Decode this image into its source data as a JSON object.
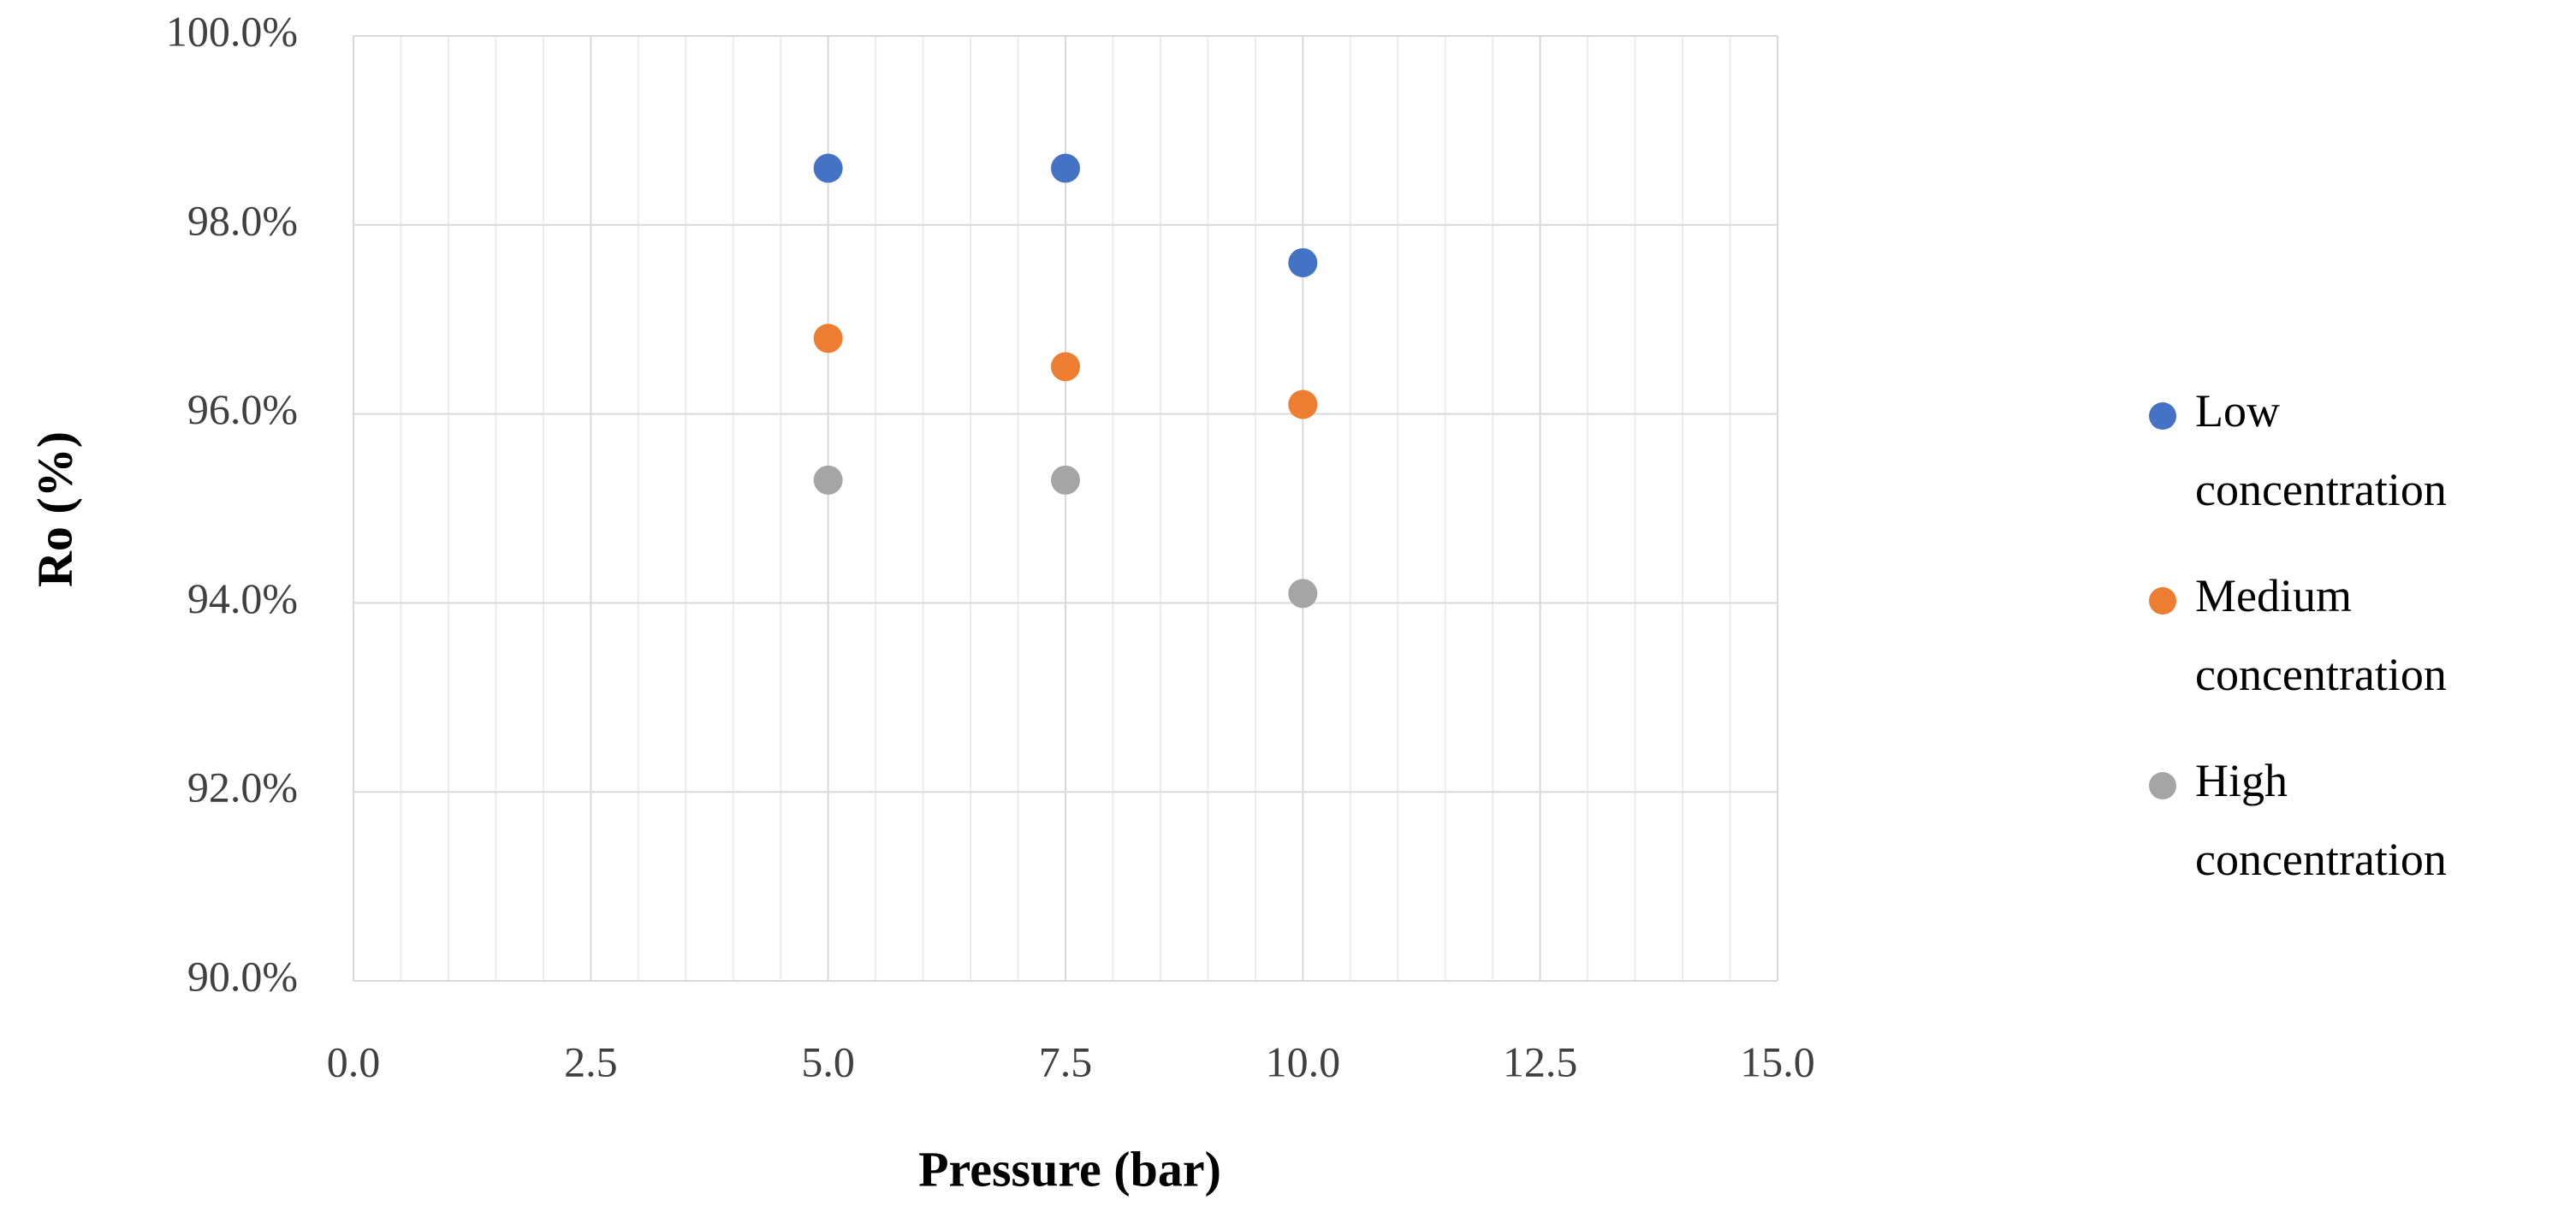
{
  "chart_data": {
    "type": "scatter",
    "x_axis_label": "Pressure (bar)",
    "y_axis_label": "Ro (%)",
    "series": [
      {
        "name": "Low concentration",
        "color": "#4472c4",
        "x": [
          5,
          7.5,
          10
        ],
        "values": [
          98.6,
          98.6,
          97.6
        ]
      },
      {
        "name": "Medium concentration",
        "color": "#ed7d31",
        "x": [
          5,
          7.5,
          10
        ],
        "values": [
          96.8,
          96.5,
          96.1
        ]
      },
      {
        "name": "High concentration",
        "color": "#a5a5a5",
        "x": [
          5,
          7.5,
          10
        ],
        "values": [
          95.3,
          95.3,
          94.1
        ]
      }
    ],
    "xlim": [
      0,
      15
    ],
    "xticks": [
      {
        "value": 0,
        "label": "0.0"
      },
      2.5,
      {
        "value": 5,
        "label": "5.0"
      },
      7.5,
      {
        "value": 10,
        "label": "10.0"
      },
      12.5,
      {
        "value": 15,
        "label": "15.0"
      }
    ],
    "ylim": [
      90,
      100
    ],
    "yticks": [
      {
        "value": 90,
        "label": "90.0%"
      },
      {
        "value": 92,
        "label": "92.0%"
      },
      {
        "value": 94,
        "label": "94.0%"
      },
      {
        "value": 96,
        "label": "96.0%"
      },
      {
        "value": 98,
        "label": "98.0%"
      },
      {
        "value": 100,
        "label": "100.0%"
      }
    ],
    "grid": true,
    "x_minor_divisions": 5,
    "legend": "right"
  }
}
